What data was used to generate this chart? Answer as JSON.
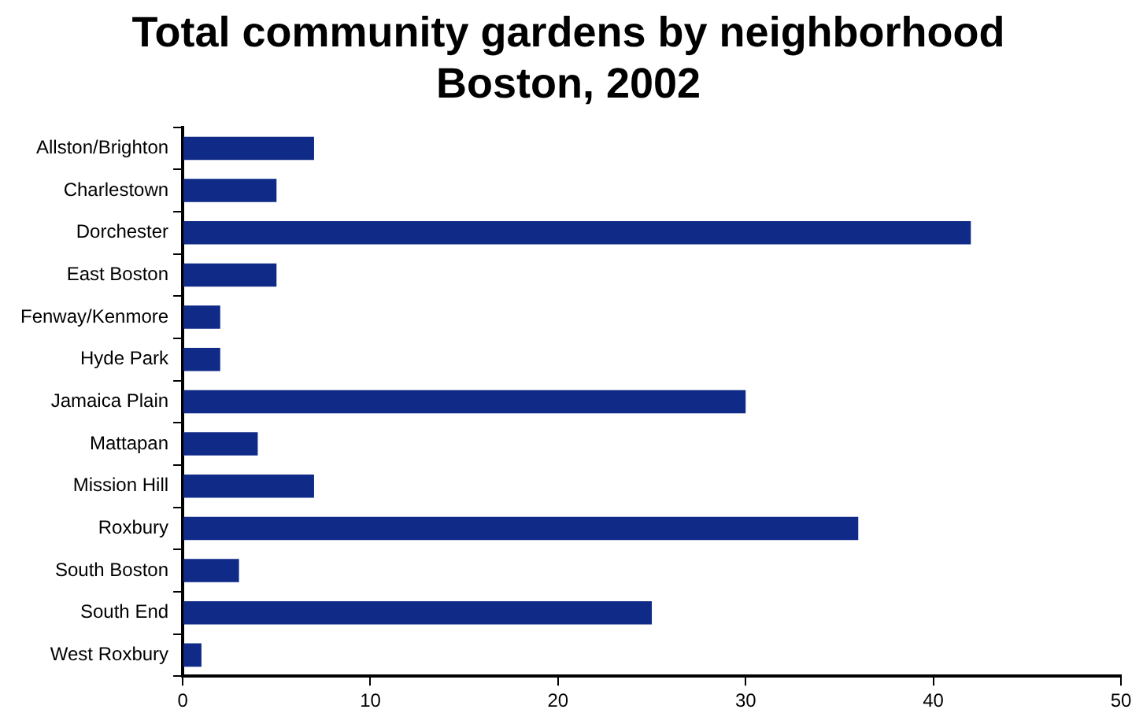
{
  "chart_data": {
    "type": "bar",
    "orientation": "horizontal",
    "title": "Total community gardens by neighborhood\nBoston, 2002",
    "categories": [
      "Allston/Brighton",
      "Charlestown",
      "Dorchester",
      "East Boston",
      "Fenway/Kenmore",
      "Hyde Park",
      "Jamaica Plain",
      "Mattapan",
      "Mission Hill",
      "Roxbury",
      "South Boston",
      "South End",
      "West Roxbury"
    ],
    "values": [
      7,
      5,
      42,
      5,
      2,
      2,
      30,
      4,
      7,
      36,
      3,
      25,
      1
    ],
    "color": "#102a88",
    "xlim": [
      0,
      50
    ],
    "xticks": [
      0,
      10,
      20,
      30,
      40,
      50
    ],
    "grid": false,
    "legend": false
  }
}
